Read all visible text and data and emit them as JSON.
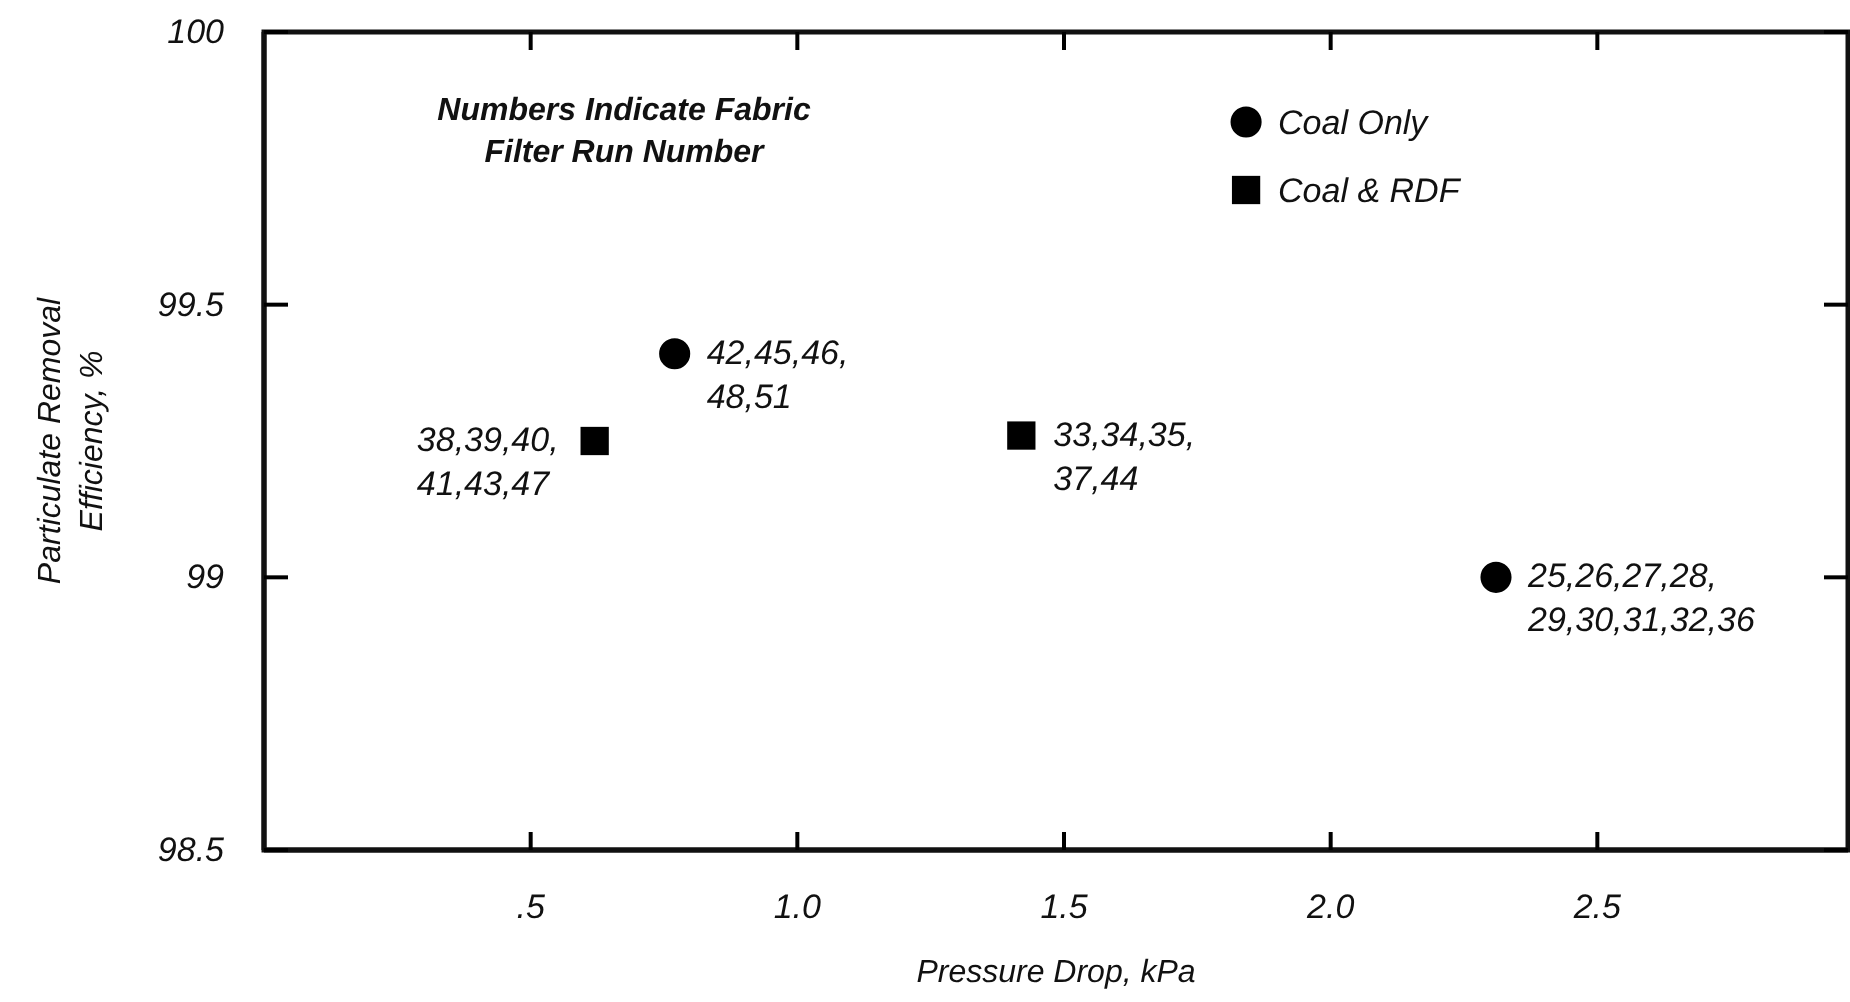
{
  "chart_data": {
    "type": "scatter",
    "xlabel": "Pressure Drop, kPa",
    "ylabel": "Particulate Removal\nEfficiency, %",
    "xlim": [
      0,
      2.97
    ],
    "xticks": [
      {
        "value": 0.5,
        "label": ".5"
      },
      {
        "value": 1,
        "label": "1.0"
      },
      {
        "value": 1.5,
        "label": "1.5"
      },
      {
        "value": 2,
        "label": "2.0"
      },
      {
        "value": 2.5,
        "label": "2.5"
      }
    ],
    "ylim": [
      98.5,
      100
    ],
    "yticks": [
      98.5,
      {
        "value": 99,
        "label": "99"
      },
      99.5,
      {
        "value": 100,
        "label": "100"
      }
    ],
    "legend": "top right",
    "grid": false,
    "series": [
      {
        "name": "Coal Only",
        "color": "#000000",
        "marker": "circle",
        "x": [
          0.77,
          2.31
        ],
        "values": [
          99.41,
          99.0
        ]
      },
      {
        "name": "Coal & RDF",
        "color": "#000000",
        "marker": "square",
        "x": [
          0.62,
          1.42
        ],
        "values": [
          99.25,
          99.26
        ]
      }
    ],
    "annotations": [
      "Numbers Indicate Fabric\nFilter Run Number",
      {
        "text": "42,45,46,\n48,51",
        "x": 0.77,
        "y": 99.41
      },
      {
        "text": "25,26,27,28,\n29,30,31,32,36",
        "x": 2.31,
        "y": 99.0
      },
      {
        "text": "38,39,40,\n41,43,47",
        "x": 0.62,
        "y": 99.25
      },
      {
        "text": "33,34,35,\n37,44",
        "x": 1.42,
        "y": 99.26
      }
    ]
  }
}
